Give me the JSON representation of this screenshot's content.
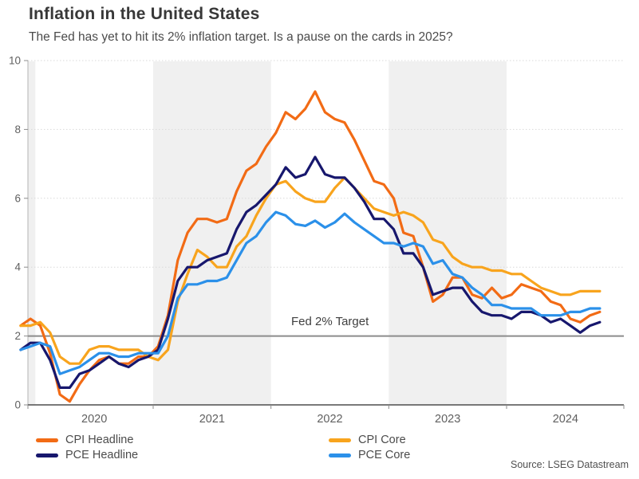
{
  "header": {
    "title": "Inflation in the United States",
    "subtitle": "The Fed has yet to hit its 2% inflation target. Is a pause on the cards in 2025?"
  },
  "annotation": {
    "label": "Fed 2% Target"
  },
  "source": "Source: LSEG Datastream",
  "colors": {
    "cpi_headline": "#f26b15",
    "cpi_core": "#f8a41d",
    "pce_headline": "#17176d",
    "pce_core": "#2b90e9",
    "band": "#f0f0f0",
    "target_line": "#8c8c8c",
    "axis": "#4d4d4d",
    "gridline": "#d9d9d9",
    "tick_text": "#5f5f5f"
  },
  "chart_data": {
    "type": "line",
    "title": "Inflation in the United States",
    "subtitle": "The Fed has yet to hit its 2% inflation target. Is a pause on the cards in 2025?",
    "xlabel": "",
    "ylabel": "",
    "x_start": "2019-12",
    "x_end": "2024-11",
    "frequency": "monthly",
    "x_tick_labels": [
      "2020",
      "2021",
      "2022",
      "2023",
      "2024"
    ],
    "ylim": [
      0,
      10
    ],
    "yticks": [
      0,
      2,
      4,
      6,
      8,
      10
    ],
    "grid": "dotted horizontal gridlines at 4, 6, 8, 10",
    "shaded_years": [
      2019,
      2021,
      2023
    ],
    "target_line": {
      "label": "Fed 2% Target",
      "value": 2
    },
    "legend_position": "bottom",
    "series": [
      {
        "name": "CPI Headline",
        "color": "#f26b15",
        "values": [
          2.3,
          2.5,
          2.3,
          1.5,
          0.3,
          0.1,
          0.6,
          1.0,
          1.3,
          1.4,
          1.2,
          1.2,
          1.4,
          1.4,
          1.7,
          2.6,
          4.2,
          5.0,
          5.4,
          5.4,
          5.3,
          5.4,
          6.2,
          6.8,
          7.0,
          7.5,
          7.9,
          8.5,
          8.3,
          8.6,
          9.1,
          8.5,
          8.3,
          8.2,
          7.7,
          7.1,
          6.5,
          6.4,
          6.0,
          5.0,
          4.9,
          4.0,
          3.0,
          3.2,
          3.7,
          3.7,
          3.2,
          3.1,
          3.4,
          3.1,
          3.2,
          3.5,
          3.4,
          3.3,
          3.0,
          2.9,
          2.5,
          2.4,
          2.6,
          2.7
        ]
      },
      {
        "name": "CPI Core",
        "color": "#f8a41d",
        "values": [
          2.3,
          2.3,
          2.4,
          2.1,
          1.4,
          1.2,
          1.2,
          1.6,
          1.7,
          1.7,
          1.6,
          1.6,
          1.6,
          1.4,
          1.3,
          1.6,
          3.0,
          3.8,
          4.5,
          4.3,
          4.0,
          4.0,
          4.6,
          4.9,
          5.5,
          6.0,
          6.4,
          6.5,
          6.2,
          6.0,
          5.9,
          5.9,
          6.3,
          6.6,
          6.3,
          6.0,
          5.7,
          5.6,
          5.5,
          5.6,
          5.5,
          5.3,
          4.8,
          4.7,
          4.3,
          4.1,
          4.0,
          4.0,
          3.9,
          3.9,
          3.8,
          3.8,
          3.6,
          3.4,
          3.3,
          3.2,
          3.2,
          3.3,
          3.3,
          3.3
        ]
      },
      {
        "name": "PCE Headline",
        "color": "#17176d",
        "values": [
          1.6,
          1.8,
          1.8,
          1.3,
          0.5,
          0.5,
          0.9,
          1.0,
          1.2,
          1.4,
          1.2,
          1.1,
          1.3,
          1.4,
          1.6,
          2.5,
          3.6,
          4.0,
          4.0,
          4.2,
          4.3,
          4.4,
          5.1,
          5.6,
          5.8,
          6.1,
          6.4,
          6.9,
          6.6,
          6.7,
          7.2,
          6.7,
          6.6,
          6.6,
          6.3,
          5.9,
          5.4,
          5.4,
          5.1,
          4.4,
          4.4,
          4.0,
          3.2,
          3.3,
          3.4,
          3.4,
          3.0,
          2.7,
          2.6,
          2.6,
          2.5,
          2.7,
          2.7,
          2.6,
          2.4,
          2.5,
          2.3,
          2.1,
          2.3,
          2.4
        ]
      },
      {
        "name": "PCE Core",
        "color": "#2b90e9",
        "values": [
          1.6,
          1.7,
          1.8,
          1.7,
          0.9,
          1.0,
          1.1,
          1.3,
          1.5,
          1.5,
          1.4,
          1.4,
          1.5,
          1.5,
          1.5,
          2.0,
          3.1,
          3.5,
          3.5,
          3.6,
          3.6,
          3.7,
          4.2,
          4.7,
          4.9,
          5.3,
          5.6,
          5.5,
          5.25,
          5.2,
          5.35,
          5.15,
          5.3,
          5.55,
          5.3,
          5.1,
          4.9,
          4.7,
          4.7,
          4.6,
          4.7,
          4.6,
          4.1,
          4.2,
          3.8,
          3.7,
          3.4,
          3.2,
          2.9,
          2.9,
          2.8,
          2.8,
          2.8,
          2.6,
          2.6,
          2.6,
          2.7,
          2.7,
          2.8,
          2.8
        ]
      }
    ]
  }
}
